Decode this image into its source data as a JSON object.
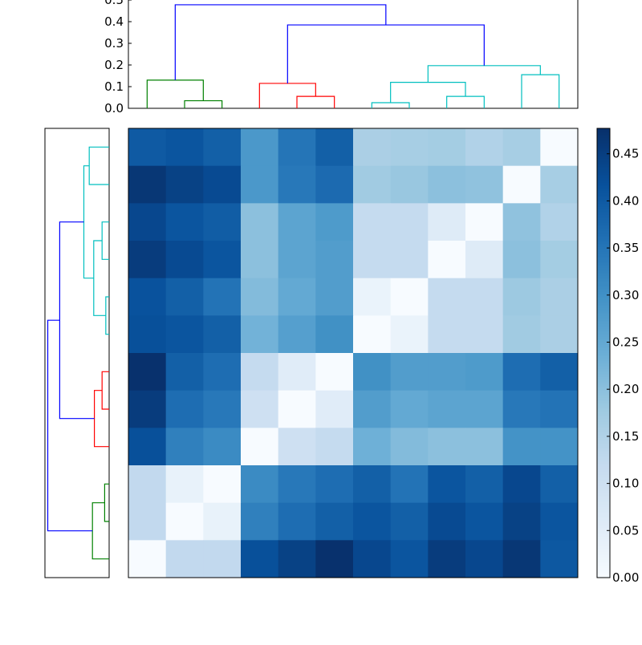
{
  "chart_data": [
    {
      "type": "heatmap",
      "colormap": "Blues",
      "vmin": 0.0,
      "vmax": 0.477,
      "values": [
        [
          0.4,
          0.41,
          0.39,
          0.285,
          0.35,
          0.39,
          0.16,
          0.165,
          0.17,
          0.15,
          0.165,
          0.0
        ],
        [
          0.465,
          0.445,
          0.43,
          0.285,
          0.345,
          0.37,
          0.175,
          0.185,
          0.2,
          0.195,
          0.0,
          0.165
        ],
        [
          0.435,
          0.41,
          0.395,
          0.2,
          0.26,
          0.28,
          0.12,
          0.12,
          0.06,
          0.0,
          0.195,
          0.15
        ],
        [
          0.455,
          0.43,
          0.41,
          0.2,
          0.26,
          0.275,
          0.12,
          0.12,
          0.0,
          0.06,
          0.2,
          0.17
        ],
        [
          0.415,
          0.39,
          0.355,
          0.21,
          0.25,
          0.275,
          0.03,
          0.0,
          0.12,
          0.12,
          0.18,
          0.16
        ],
        [
          0.42,
          0.41,
          0.39,
          0.23,
          0.27,
          0.3,
          0.0,
          0.03,
          0.12,
          0.12,
          0.175,
          0.16
        ],
        [
          0.475,
          0.39,
          0.365,
          0.12,
          0.055,
          0.0,
          0.3,
          0.275,
          0.275,
          0.28,
          0.365,
          0.39
        ],
        [
          0.455,
          0.365,
          0.345,
          0.1,
          0.0,
          0.055,
          0.275,
          0.25,
          0.26,
          0.26,
          0.345,
          0.355
        ],
        [
          0.42,
          0.33,
          0.31,
          0.0,
          0.1,
          0.12,
          0.235,
          0.21,
          0.2,
          0.2,
          0.295,
          0.295
        ],
        [
          0.125,
          0.035,
          0.0,
          0.31,
          0.345,
          0.365,
          0.39,
          0.355,
          0.41,
          0.39,
          0.435,
          0.39
        ],
        [
          0.125,
          0.0,
          0.035,
          0.33,
          0.365,
          0.39,
          0.41,
          0.39,
          0.43,
          0.41,
          0.445,
          0.41
        ],
        [
          0.0,
          0.125,
          0.125,
          0.42,
          0.445,
          0.475,
          0.435,
          0.41,
          0.455,
          0.435,
          0.465,
          0.405
        ]
      ],
      "colorbar": {
        "ticks": [
          "0.00",
          "0.05",
          "0.10",
          "0.15",
          "0.20",
          "0.25",
          "0.30",
          "0.35",
          "0.40",
          "0.45"
        ],
        "tick_values": [
          0,
          0.05,
          0.1,
          0.15,
          0.2,
          0.25,
          0.3,
          0.35,
          0.4,
          0.45
        ]
      }
    },
    {
      "type": "dendrogram",
      "orientation": "top",
      "ylim": [
        0,
        0.5
      ],
      "ticks": [
        "0.0",
        "0.1",
        "0.2",
        "0.3",
        "0.4",
        "0.5"
      ],
      "tick_values": [
        0,
        0.1,
        0.2,
        0.3,
        0.4,
        0.5
      ],
      "links": [
        {
          "icoord": [
            15,
            15,
            25,
            25
          ],
          "dcoord": [
            0,
            0.035,
            0.035,
            0
          ],
          "color": "#008000"
        },
        {
          "icoord": [
            5,
            5,
            20,
            20
          ],
          "dcoord": [
            0,
            0.13,
            0.13,
            0.035
          ],
          "color": "#008000"
        },
        {
          "icoord": [
            45,
            45,
            55,
            55
          ],
          "dcoord": [
            0,
            0.055,
            0.055,
            0
          ],
          "color": "#ff0000"
        },
        {
          "icoord": [
            35,
            35,
            50,
            50
          ],
          "dcoord": [
            0,
            0.115,
            0.115,
            0.055
          ],
          "color": "#ff0000"
        },
        {
          "icoord": [
            65,
            65,
            75,
            75
          ],
          "dcoord": [
            0,
            0.026,
            0.026,
            0
          ],
          "color": "#00bfbf"
        },
        {
          "icoord": [
            85,
            85,
            95,
            95
          ],
          "dcoord": [
            0,
            0.055,
            0.055,
            0
          ],
          "color": "#00bfbf"
        },
        {
          "icoord": [
            70,
            70,
            90,
            90
          ],
          "dcoord": [
            0.026,
            0.12,
            0.12,
            0.055
          ],
          "color": "#00bfbf"
        },
        {
          "icoord": [
            105,
            105,
            115,
            115
          ],
          "dcoord": [
            0,
            0.155,
            0.155,
            0
          ],
          "color": "#00bfbf"
        },
        {
          "icoord": [
            80,
            80,
            110,
            110
          ],
          "dcoord": [
            0.12,
            0.197,
            0.197,
            0.155
          ],
          "color": "#00bfbf"
        },
        {
          "icoord": [
            42.5,
            42.5,
            95,
            95
          ],
          "dcoord": [
            0.115,
            0.385,
            0.385,
            0.197
          ],
          "color": "#0000ff"
        },
        {
          "icoord": [
            12.5,
            12.5,
            68.75,
            68.75
          ],
          "dcoord": [
            0.13,
            0.478,
            0.478,
            0.385
          ],
          "color": "#0000ff"
        }
      ]
    },
    {
      "type": "dendrogram",
      "orientation": "left",
      "mirrors": "top"
    }
  ]
}
